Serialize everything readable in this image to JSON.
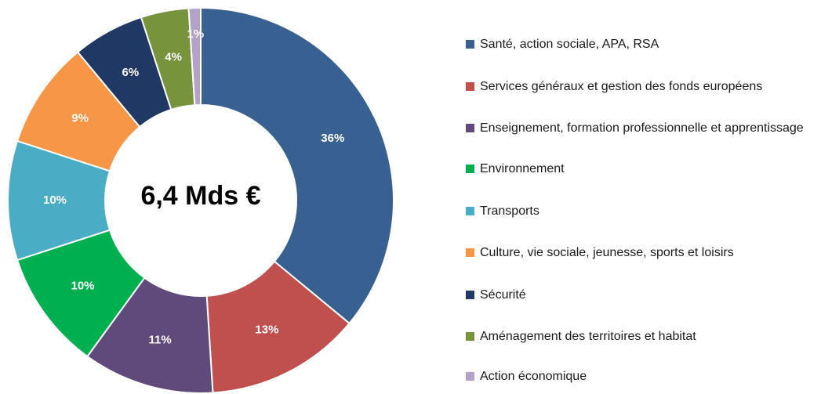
{
  "chart_data": {
    "type": "pie",
    "style": "donut",
    "center_label": "6,4 Mds €",
    "legend_position": "right",
    "categories": [
      "Santé, action sociale, APA, RSA",
      "Services généraux et gestion des fonds européens",
      "Enseignement, formation professionnelle et apprentissage",
      "Environnement",
      "Transports",
      "Culture, vie sociale, jeunesse, sports et loisirs",
      "Sécurité",
      "Aménagement des territoires et habitat",
      "Action économique"
    ],
    "values": [
      36,
      13,
      11,
      10,
      10,
      9,
      6,
      4,
      1
    ],
    "labels": [
      "36%",
      "13%",
      "11%",
      "10%",
      "10%",
      "9%",
      "6%",
      "4%",
      "1%"
    ],
    "colors": [
      "#386090",
      "#c0504d",
      "#604a7b",
      "#00b050",
      "#4bacc6",
      "#f79646",
      "#1f3864",
      "#77933c",
      "#b3a2c7"
    ]
  }
}
